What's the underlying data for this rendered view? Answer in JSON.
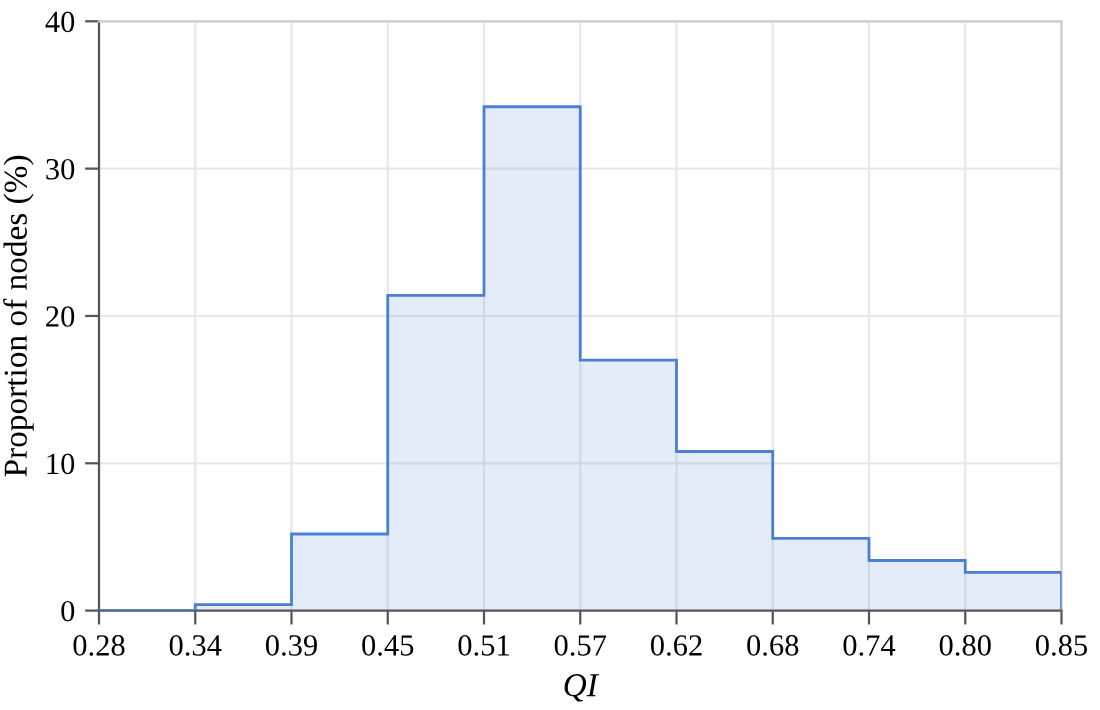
{
  "chart_data": {
    "type": "histogram",
    "xlabel": "QI",
    "ylabel": "Proportion of nodes (%)",
    "bins": [
      0.2778,
      0.3354,
      0.393,
      0.4506,
      0.5082,
      0.5658,
      0.6234,
      0.681,
      0.7386,
      0.7962,
      0.8538
    ],
    "values": [
      0.0,
      0.4,
      5.2,
      21.4,
      34.2,
      17.0,
      10.8,
      4.9,
      3.4,
      2.6
    ],
    "color": "#4a7fd6",
    "xlim": [
      0.2778,
      0.8538
    ],
    "xticks": [
      {
        "value": 0.2778,
        "label": "0.28"
      },
      {
        "value": 0.3354,
        "label": "0.34"
      },
      {
        "value": 0.393,
        "label": "0.39"
      },
      {
        "value": 0.4506,
        "label": "0.45"
      },
      {
        "value": 0.5082,
        "label": "0.51"
      },
      {
        "value": 0.5658,
        "label": "0.57"
      },
      {
        "value": 0.6234,
        "label": "0.62"
      },
      {
        "value": 0.681,
        "label": "0.68"
      },
      {
        "value": 0.7386,
        "label": "0.74"
      },
      {
        "value": 0.7962,
        "label": "0.80"
      },
      {
        "value": 0.8538,
        "label": "0.85"
      }
    ],
    "ylim": [
      0,
      40
    ],
    "yticks": [
      0,
      10,
      20,
      30,
      40
    ],
    "grid": true
  }
}
